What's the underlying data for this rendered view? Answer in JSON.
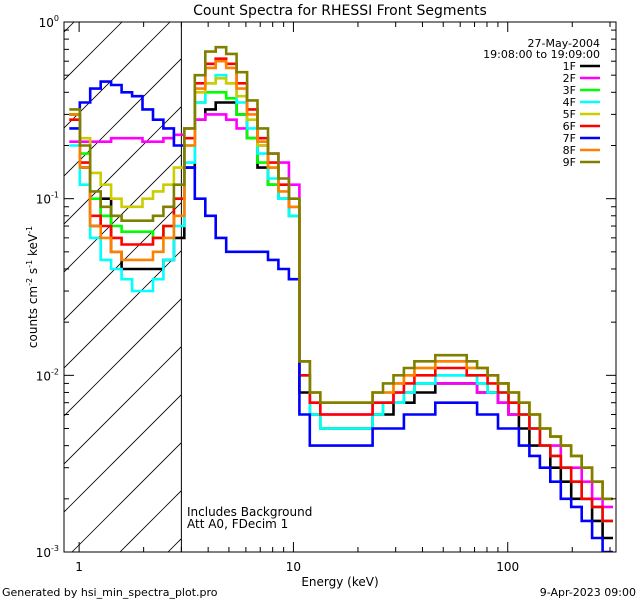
{
  "chart_data": {
    "type": "line",
    "title": "Count Spectra for RHESSI Front Segments",
    "xlabel": "Energy (keV)",
    "ylabel": "counts cm",
    "ylabel_sup1": "-2",
    "ylabel_mid": " s",
    "ylabel_sup2": "-1",
    "ylabel_tail": " keV",
    "ylabel_sup3": "-1",
    "xscale": "log",
    "yscale": "log",
    "xlim": [
      0.85,
      320
    ],
    "ylim": [
      0.001,
      1.0
    ],
    "x_ticks": [
      {
        "value": 1,
        "label": "1"
      },
      {
        "value": 10,
        "label": "10"
      },
      {
        "value": 100,
        "label": "100"
      }
    ],
    "y_ticks": [
      {
        "value": 1.0,
        "base": "10",
        "exp": "0"
      },
      {
        "value": 0.1,
        "base": "10",
        "exp": "-1"
      },
      {
        "value": 0.01,
        "base": "10",
        "exp": "-2"
      },
      {
        "value": 0.001,
        "base": "10",
        "exp": "-3"
      }
    ],
    "date": "27-May-2004",
    "time_range": "19:08:00 to 19:09:00",
    "annotation_line1": "Includes Background",
    "annotation_line2": "Att A0, FDecim 1",
    "hatched_region_max_kev": 3,
    "series": [
      {
        "name": "1F",
        "color": "#000000",
        "values": [
          0.3,
          0.15,
          0.07,
          0.1,
          0.05,
          0.04,
          0.04,
          0.04,
          0.04,
          0.045,
          0.06,
          0.15,
          0.28,
          0.32,
          0.35,
          0.35,
          0.3,
          0.22,
          0.15,
          0.12,
          0.1,
          0.08,
          0.008,
          0.006,
          0.005,
          0.005,
          0.005,
          0.005,
          0.005,
          0.006,
          0.006,
          0.007,
          0.007,
          0.008,
          0.008,
          0.009,
          0.009,
          0.009,
          0.009,
          0.008,
          0.008,
          0.007,
          0.006,
          0.005,
          0.004,
          0.004,
          0.003,
          0.0025,
          0.002,
          0.002,
          0.0015,
          0.0012
        ]
      },
      {
        "name": "2F",
        "color": "#ff00ff",
        "values": [
          0.21,
          0.21,
          0.21,
          0.21,
          0.22,
          0.22,
          0.22,
          0.21,
          0.21,
          0.22,
          0.23,
          0.25,
          0.28,
          0.3,
          0.3,
          0.28,
          0.25,
          0.22,
          0.2,
          0.18,
          0.16,
          0.12,
          0.012,
          0.007,
          0.006,
          0.006,
          0.006,
          0.006,
          0.006,
          0.007,
          0.007,
          0.008,
          0.008,
          0.009,
          0.009,
          0.009,
          0.009,
          0.009,
          0.009,
          0.008,
          0.008,
          0.007,
          0.006,
          0.006,
          0.005,
          0.004,
          0.004,
          0.003,
          0.003,
          0.0025,
          0.002,
          0.0018
        ]
      },
      {
        "name": "3F",
        "color": "#00ff00",
        "values": [
          0.3,
          0.18,
          0.1,
          0.08,
          0.07,
          0.065,
          0.065,
          0.065,
          0.06,
          0.07,
          0.1,
          0.2,
          0.35,
          0.4,
          0.4,
          0.37,
          0.3,
          0.22,
          0.16,
          0.12,
          0.1,
          0.08,
          0.01,
          0.006,
          0.005,
          0.005,
          0.005,
          0.005,
          0.005,
          0.006,
          0.007,
          0.007,
          0.008,
          0.009,
          0.009,
          0.01,
          0.01,
          0.01,
          0.01,
          0.009,
          0.008,
          0.008,
          0.007,
          0.006,
          0.005,
          0.004,
          0.0035,
          0.003,
          0.0025,
          0.002,
          0.0018,
          0.0015
        ]
      },
      {
        "name": "4F",
        "color": "#00ffff",
        "values": [
          0.2,
          0.12,
          0.06,
          0.045,
          0.04,
          0.035,
          0.03,
          0.03,
          0.035,
          0.045,
          0.07,
          0.16,
          0.35,
          0.45,
          0.5,
          0.45,
          0.35,
          0.25,
          0.18,
          0.13,
          0.1,
          0.08,
          0.01,
          0.006,
          0.005,
          0.005,
          0.005,
          0.005,
          0.005,
          0.006,
          0.007,
          0.007,
          0.008,
          0.009,
          0.009,
          0.01,
          0.01,
          0.01,
          0.01,
          0.009,
          0.008,
          0.008,
          0.007,
          0.006,
          0.005,
          0.004,
          0.0035,
          0.003,
          0.0025,
          0.002,
          0.0018,
          0.0015
        ]
      },
      {
        "name": "5F",
        "color": "#cccc00",
        "values": [
          0.28,
          0.22,
          0.14,
          0.12,
          0.1,
          0.09,
          0.09,
          0.1,
          0.11,
          0.12,
          0.15,
          0.25,
          0.4,
          0.45,
          0.48,
          0.45,
          0.38,
          0.28,
          0.2,
          0.15,
          0.12,
          0.1,
          0.012,
          0.008,
          0.007,
          0.007,
          0.007,
          0.007,
          0.007,
          0.008,
          0.008,
          0.009,
          0.01,
          0.011,
          0.011,
          0.012,
          0.012,
          0.012,
          0.011,
          0.011,
          0.01,
          0.009,
          0.008,
          0.007,
          0.006,
          0.005,
          0.0045,
          0.004,
          0.0035,
          0.003,
          0.0025,
          0.002
        ]
      },
      {
        "name": "6F",
        "color": "#ff0000",
        "values": [
          0.28,
          0.16,
          0.08,
          0.07,
          0.06,
          0.055,
          0.055,
          0.055,
          0.06,
          0.07,
          0.1,
          0.22,
          0.45,
          0.58,
          0.62,
          0.58,
          0.45,
          0.32,
          0.22,
          0.16,
          0.12,
          0.09,
          0.01,
          0.007,
          0.006,
          0.006,
          0.006,
          0.006,
          0.006,
          0.007,
          0.007,
          0.008,
          0.009,
          0.01,
          0.01,
          0.011,
          0.011,
          0.011,
          0.01,
          0.01,
          0.009,
          0.008,
          0.007,
          0.006,
          0.005,
          0.004,
          0.0035,
          0.003,
          0.0025,
          0.002,
          0.0018,
          0.0015
        ]
      },
      {
        "name": "7F",
        "color": "#0000ff",
        "values": [
          0.25,
          0.35,
          0.42,
          0.46,
          0.44,
          0.4,
          0.38,
          0.32,
          0.28,
          0.25,
          0.2,
          0.15,
          0.1,
          0.08,
          0.06,
          0.05,
          0.05,
          0.05,
          0.05,
          0.045,
          0.04,
          0.035,
          0.006,
          0.004,
          0.004,
          0.004,
          0.004,
          0.004,
          0.004,
          0.005,
          0.005,
          0.005,
          0.006,
          0.006,
          0.006,
          0.007,
          0.007,
          0.007,
          0.007,
          0.006,
          0.006,
          0.005,
          0.005,
          0.004,
          0.0035,
          0.003,
          0.0025,
          0.002,
          0.0018,
          0.0015,
          0.0012,
          0.001
        ]
      },
      {
        "name": "8F",
        "color": "#ff8000",
        "values": [
          0.3,
          0.15,
          0.07,
          0.06,
          0.05,
          0.045,
          0.045,
          0.045,
          0.05,
          0.06,
          0.08,
          0.2,
          0.42,
          0.55,
          0.6,
          0.55,
          0.42,
          0.3,
          0.21,
          0.15,
          0.11,
          0.09,
          0.012,
          0.008,
          0.007,
          0.007,
          0.007,
          0.007,
          0.007,
          0.008,
          0.008,
          0.009,
          0.01,
          0.011,
          0.011,
          0.012,
          0.012,
          0.012,
          0.011,
          0.011,
          0.01,
          0.009,
          0.008,
          0.007,
          0.006,
          0.005,
          0.0045,
          0.004,
          0.0035,
          0.003,
          0.0025,
          0.002
        ]
      },
      {
        "name": "9F",
        "color": "#808000",
        "values": [
          0.32,
          0.2,
          0.11,
          0.09,
          0.08,
          0.075,
          0.075,
          0.075,
          0.08,
          0.09,
          0.12,
          0.25,
          0.5,
          0.68,
          0.72,
          0.66,
          0.52,
          0.36,
          0.25,
          0.18,
          0.13,
          0.1,
          0.012,
          0.008,
          0.007,
          0.007,
          0.007,
          0.007,
          0.007,
          0.008,
          0.009,
          0.01,
          0.011,
          0.012,
          0.012,
          0.013,
          0.013,
          0.013,
          0.012,
          0.011,
          0.01,
          0.009,
          0.008,
          0.007,
          0.006,
          0.005,
          0.0045,
          0.004,
          0.0035,
          0.003,
          0.0025,
          0.002
        ]
      }
    ]
  },
  "footer": {
    "left": "Generated by hsi_min_spectra_plot.pro",
    "right": "9-Apr-2023 09:00"
  }
}
